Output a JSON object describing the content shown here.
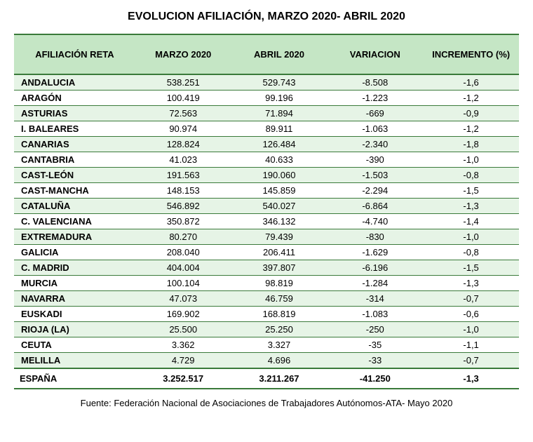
{
  "title": "EVOLUCION AFILIACIÓN,  MARZO 2020- ABRIL 2020",
  "columns": {
    "region": "AFILIACIÓN RETA",
    "march": "MARZO 2020",
    "april": "ABRIL 2020",
    "variation": "VARIACION",
    "increment": "INCREMENTO (%)"
  },
  "rows": [
    {
      "region": "ANDALUCIA",
      "march": "538.251",
      "april": "529.743",
      "variation": "-8.508",
      "increment": "-1,6"
    },
    {
      "region": "ARAGÓN",
      "march": "100.419",
      "april": "99.196",
      "variation": "-1.223",
      "increment": "-1,2"
    },
    {
      "region": "ASTURIAS",
      "march": "72.563",
      "april": "71.894",
      "variation": "-669",
      "increment": "-0,9"
    },
    {
      "region": "I. BALEARES",
      "march": "90.974",
      "april": "89.911",
      "variation": "-1.063",
      "increment": "-1,2"
    },
    {
      "region": "CANARIAS",
      "march": "128.824",
      "april": "126.484",
      "variation": "-2.340",
      "increment": "-1,8"
    },
    {
      "region": "CANTABRIA",
      "march": "41.023",
      "april": "40.633",
      "variation": "-390",
      "increment": "-1,0"
    },
    {
      "region": "CAST-LEÓN",
      "march": "191.563",
      "april": "190.060",
      "variation": "-1.503",
      "increment": "-0,8"
    },
    {
      "region": "CAST-MANCHA",
      "march": "148.153",
      "april": "145.859",
      "variation": "-2.294",
      "increment": "-1,5"
    },
    {
      "region": "CATALUÑA",
      "march": "546.892",
      "april": "540.027",
      "variation": "-6.864",
      "increment": "-1,3"
    },
    {
      "region": "C. VALENCIANA",
      "march": "350.872",
      "april": "346.132",
      "variation": "-4.740",
      "increment": "-1,4"
    },
    {
      "region": "EXTREMADURA",
      "march": "80.270",
      "april": "79.439",
      "variation": "-830",
      "increment": "-1,0"
    },
    {
      "region": "GALICIA",
      "march": "208.040",
      "april": "206.411",
      "variation": "-1.629",
      "increment": "-0,8"
    },
    {
      "region": "C. MADRID",
      "march": "404.004",
      "april": "397.807",
      "variation": "-6.196",
      "increment": "-1,5"
    },
    {
      "region": "MURCIA",
      "march": "100.104",
      "april": "98.819",
      "variation": "-1.284",
      "increment": "-1,3"
    },
    {
      "region": "NAVARRA",
      "march": "47.073",
      "april": "46.759",
      "variation": "-314",
      "increment": "-0,7"
    },
    {
      "region": "EUSKADI",
      "march": "169.902",
      "april": "168.819",
      "variation": "-1.083",
      "increment": "-0,6"
    },
    {
      "region": "RIOJA (LA)",
      "march": "25.500",
      "april": "25.250",
      "variation": "-250",
      "increment": "-1,0"
    },
    {
      "region": "CEUTA",
      "march": "3.362",
      "april": "3.327",
      "variation": "-35",
      "increment": "-1,1"
    },
    {
      "region": "MELILLA",
      "march": "4.729",
      "april": "4.696",
      "variation": "-33",
      "increment": "-0,7"
    }
  ],
  "total": {
    "region": "ESPAÑA",
    "march": "3.252.517",
    "april": "3.211.267",
    "variation": "-41.250",
    "increment": "-1,3"
  },
  "source": "Fuente: Federación Nacional de Asociaciones de Trabajadores Autónomos-ATA- Mayo 2020",
  "style": {
    "header_bg": "#c5e6c5",
    "row_odd_bg": "#e6f4e6",
    "row_even_bg": "#ffffff",
    "border_color": "#3a7a3a",
    "col_widths": [
      "24%",
      "19%",
      "19%",
      "19%",
      "19%"
    ]
  }
}
